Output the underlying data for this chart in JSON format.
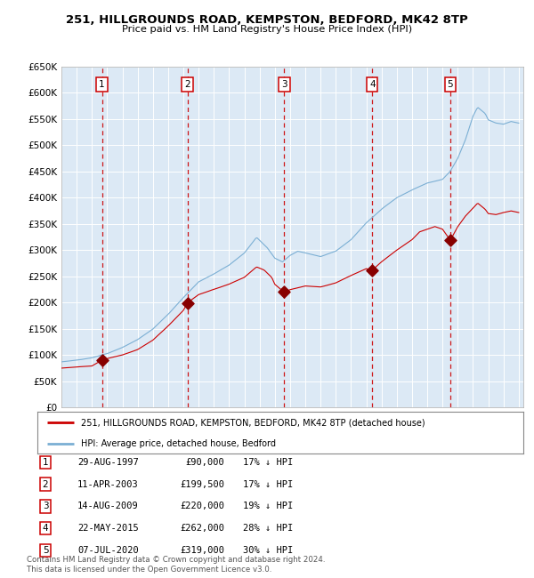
{
  "title": "251, HILLGROUNDS ROAD, KEMPSTON, BEDFORD, MK42 8TP",
  "subtitle": "Price paid vs. HM Land Registry's House Price Index (HPI)",
  "ylim": [
    0,
    650000
  ],
  "yticks": [
    0,
    50000,
    100000,
    150000,
    200000,
    250000,
    300000,
    350000,
    400000,
    450000,
    500000,
    550000,
    600000,
    650000
  ],
  "ytick_labels": [
    "£0",
    "£50K",
    "£100K",
    "£150K",
    "£200K",
    "£250K",
    "£300K",
    "£350K",
    "£400K",
    "£450K",
    "£500K",
    "£550K",
    "£600K",
    "£650K"
  ],
  "background_color": "#dce9f5",
  "grid_color": "#ffffff",
  "sale_dates_decimal": [
    1997.66,
    2003.27,
    2009.62,
    2015.39,
    2020.51
  ],
  "sale_prices": [
    90000,
    199500,
    220000,
    262000,
    319000
  ],
  "sale_labels": [
    "1",
    "2",
    "3",
    "4",
    "5"
  ],
  "sale_discounts": [
    "17% ↓ HPI",
    "17% ↓ HPI",
    "19% ↓ HPI",
    "28% ↓ HPI",
    "30% ↓ HPI"
  ],
  "sale_date_labels": [
    "29-AUG-1997",
    "11-APR-2003",
    "14-AUG-2009",
    "22-MAY-2015",
    "07-JUL-2020"
  ],
  "sale_price_labels": [
    "£90,000",
    "£199,500",
    "£220,000",
    "£262,000",
    "£319,000"
  ],
  "red_line_color": "#cc0000",
  "blue_line_color": "#7bafd4",
  "marker_color": "#880000",
  "dashed_line_color": "#cc0000",
  "legend_label_red": "251, HILLGROUNDS ROAD, KEMPSTON, BEDFORD, MK42 8TP (detached house)",
  "legend_label_blue": "HPI: Average price, detached house, Bedford",
  "footer_text": "Contains HM Land Registry data © Crown copyright and database right 2024.\nThis data is licensed under the Open Government Licence v3.0."
}
